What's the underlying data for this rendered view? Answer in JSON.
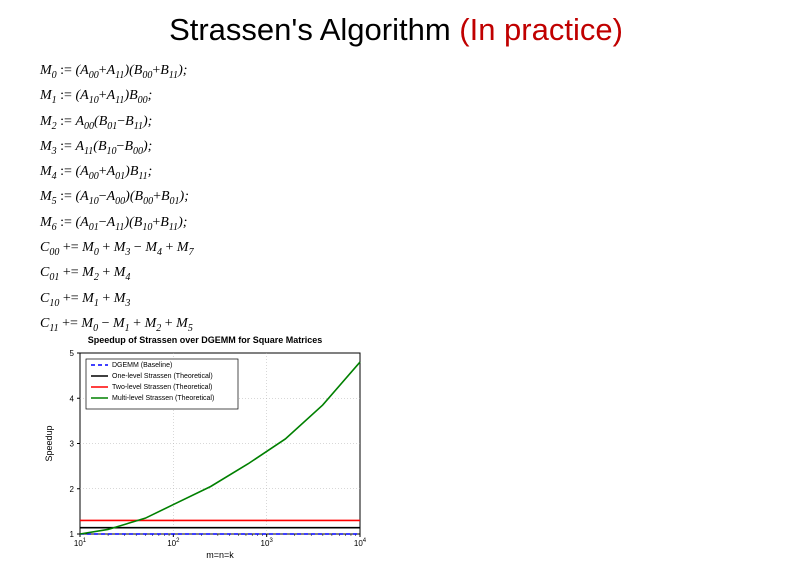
{
  "title_pre": "Strassen's Algorithm ",
  "title_red": "(In practice)",
  "equations": [
    "M0 := (A00+A11)(B00+B11);",
    "M1 := (A10+A11)B00;",
    "M2 := A00(B01−B11);",
    "M3 := A11(B10−B00);",
    "M4 := (A00+A01)B11;",
    "M5 := (A10−A00)(B00+B01);",
    "M6 := (A01−A11)(B10+B11);",
    "C00 += M0 + M3 − M4 + M7",
    "C01 += M2 + M4",
    "C10 += M1 + M3",
    "C11 += M0 − M1 + M2 + M5"
  ],
  "chart": {
    "title": "Speedup of Strassen over DGEMM for Square Matrices",
    "xlabel": "m=n=k",
    "ylabel": "Speedup",
    "xticks": [
      "10^1",
      "10^2",
      "10^3",
      "10^4"
    ],
    "yticks": [
      1,
      2,
      3,
      4,
      5
    ],
    "xmin_log": 1,
    "xmax_log": 4,
    "ymin": 1,
    "ymax": 5,
    "grid_color": "#b0b0b0",
    "background": "#ffffff",
    "legend": [
      {
        "label": "DGEMM (Baseline)",
        "color": "#0000ff",
        "dash": "4,3"
      },
      {
        "label": "One-level Strassen (Theoretical)",
        "color": "#000000",
        "dash": "none"
      },
      {
        "label": "Two-level Strassen (Theoretical)",
        "color": "#ff0000",
        "dash": "none"
      },
      {
        "label": "Multi-level Strassen (Theoretical)",
        "color": "#008000",
        "dash": "none"
      }
    ],
    "series": [
      {
        "name": "dgemm",
        "color": "#0000ff",
        "dash": "4,3",
        "points": [
          [
            1,
            1
          ],
          [
            4,
            1
          ]
        ]
      },
      {
        "name": "one",
        "color": "#000000",
        "dash": "none",
        "points": [
          [
            1,
            1.14
          ],
          [
            4,
            1.14
          ]
        ]
      },
      {
        "name": "two",
        "color": "#ff0000",
        "dash": "none",
        "points": [
          [
            1,
            1.3
          ],
          [
            4,
            1.3
          ]
        ]
      },
      {
        "name": "multi",
        "color": "#008000",
        "dash": "none",
        "points": [
          [
            1,
            1.0
          ],
          [
            1.3,
            1.1
          ],
          [
            1.7,
            1.35
          ],
          [
            2.0,
            1.65
          ],
          [
            2.4,
            2.05
          ],
          [
            2.8,
            2.55
          ],
          [
            3.2,
            3.1
          ],
          [
            3.6,
            3.85
          ],
          [
            4.0,
            4.8
          ]
        ]
      }
    ]
  }
}
